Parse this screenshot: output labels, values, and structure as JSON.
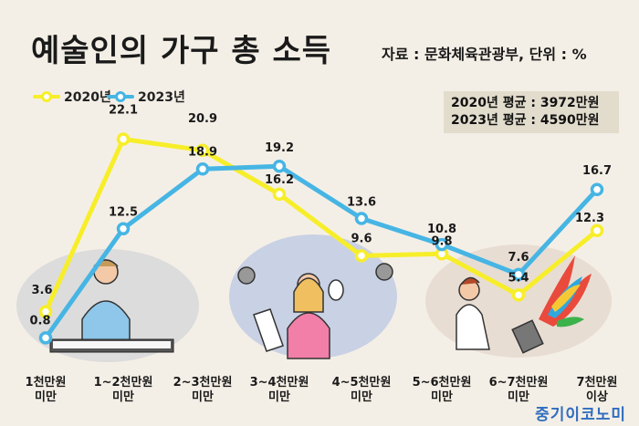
{
  "title": "예술인의 가구 총 소득",
  "source": "자료 : 문화체육관광부, 단위 : %",
  "averages": [
    "2020년 평균 : 3972만원",
    "2023년 평균 : 4590만원"
  ],
  "brand": "중기이코노미",
  "colors": {
    "y2020": "#f7ee2a",
    "y2023": "#46b5e4",
    "background": "#f4efe6"
  },
  "chart_data": {
    "type": "line",
    "title": "예술인의 가구 총 소득",
    "xlabel": "",
    "ylabel": "",
    "categories": [
      [
        "1천만원",
        "미만"
      ],
      [
        "1~2천만원",
        "미만"
      ],
      [
        "2~3천만원",
        "미만"
      ],
      [
        "3~4천만원",
        "미만"
      ],
      [
        "4~5천만원",
        "미만"
      ],
      [
        "5~6천만원",
        "미만"
      ],
      [
        "6~7천만원",
        "미만"
      ],
      [
        "7천만원",
        "이상"
      ]
    ],
    "series": [
      {
        "name": "2020년",
        "values": [
          3.6,
          22.1,
          20.9,
          16.2,
          9.6,
          9.8,
          5.4,
          12.3
        ]
      },
      {
        "name": "2023년",
        "values": [
          0.8,
          12.5,
          18.9,
          19.2,
          13.6,
          10.8,
          7.6,
          16.7
        ]
      }
    ],
    "ylim": [
      0,
      23
    ],
    "grid": false,
    "legend": "top-left"
  }
}
